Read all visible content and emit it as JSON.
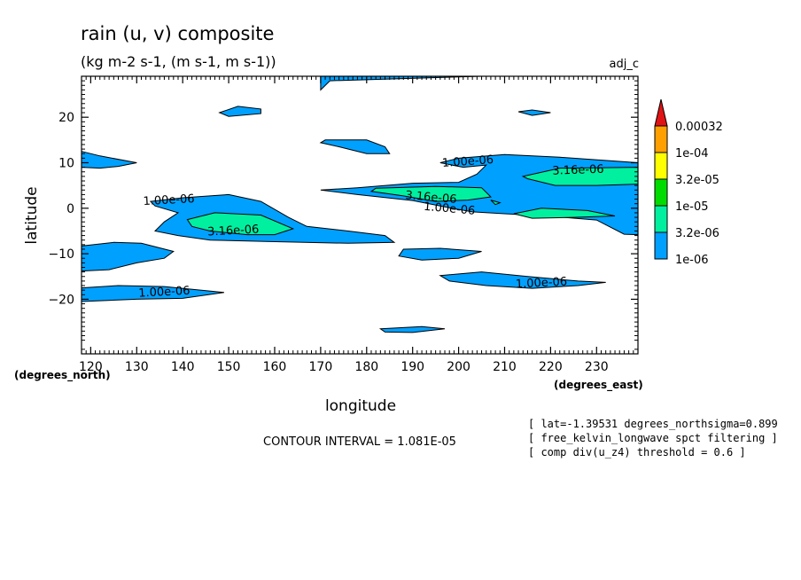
{
  "chart_data": {
    "type": "contour",
    "title": "rain (u, v) composite",
    "subtitle": "(kg m-2 s-1, (m s-1, m s-1))",
    "run_label": "adj_c",
    "xlabel": "longitude",
    "ylabel": "latitude",
    "x_units": "(degrees_east)",
    "y_units": "(degrees_north)",
    "xlim": [
      118,
      239
    ],
    "ylim": [
      -32,
      29
    ],
    "x_ticks": [
      120,
      130,
      140,
      150,
      160,
      170,
      180,
      190,
      200,
      210,
      220,
      230
    ],
    "y_ticks": [
      20,
      10,
      0,
      -10,
      -20
    ],
    "y_tick_labels": [
      "20",
      "10",
      "0",
      "−10",
      "−20"
    ],
    "contour_interval_text": "CONTOUR INTERVAL = 1.081E-05",
    "info_lines": [
      "[ lat=-1.39531 degrees_northsigma=0.899",
      "[ free_kelvin_longwave spct filtering ]",
      "[ comp div(u_z4) threshold = 0.6 ]"
    ],
    "levels": [
      {
        "label": "1e-06",
        "color": "#00a0ff"
      },
      {
        "label": "3.2e-06",
        "color": "#00f0a0"
      },
      {
        "label": "1e-05",
        "color": "#00dc00"
      },
      {
        "label": "3.2e-05",
        "color": "#ffff00"
      },
      {
        "label": "1e-04",
        "color": "#ffa000"
      },
      {
        "label": "0.00032",
        "color": "#e01414"
      }
    ],
    "contour_labels": [
      {
        "text": "1.00e-06",
        "x": 137,
        "y": 1.7,
        "angle": -3
      },
      {
        "text": "3.16e-06",
        "x": 151,
        "y": -5,
        "angle": -3
      },
      {
        "text": "1.00e-06",
        "x": 136,
        "y": -18.5,
        "angle": -3
      },
      {
        "text": "3.16e-06",
        "x": 194,
        "y": 2.3,
        "angle": 5
      },
      {
        "text": "1.00e-06",
        "x": 198,
        "y": -0.2,
        "angle": 5
      },
      {
        "text": "1.00e-06",
        "x": 202,
        "y": 10.2,
        "angle": -4
      },
      {
        "text": "3.16e-06",
        "x": 226,
        "y": 8.3,
        "angle": -2
      },
      {
        "text": "1.00e-06",
        "x": 218,
        "y": -16.5,
        "angle": -3
      }
    ],
    "regions": [
      {
        "level": 0,
        "points": [
          [
            170,
            26
          ],
          [
            172,
            28
          ],
          [
            205,
            29
          ],
          [
            170,
            29
          ]
        ]
      },
      {
        "level": 0,
        "points": [
          [
            148,
            21
          ],
          [
            152,
            22.4
          ],
          [
            157,
            21.8
          ],
          [
            157,
            20.8
          ],
          [
            150,
            20.2
          ]
        ]
      },
      {
        "level": 0,
        "points": [
          [
            171,
            15
          ],
          [
            180,
            15
          ],
          [
            184,
            13.5
          ],
          [
            185,
            12
          ],
          [
            180,
            12
          ],
          [
            174,
            13.5
          ],
          [
            170,
            14.4
          ]
        ]
      },
      {
        "level": 0,
        "points": [
          [
            213,
            21.2
          ],
          [
            216,
            21.6
          ],
          [
            220,
            21
          ],
          [
            216,
            20.4
          ]
        ]
      },
      {
        "level": 0,
        "points": [
          [
            118,
            12.5
          ],
          [
            122,
            11.5
          ],
          [
            130,
            10
          ],
          [
            126,
            9.2
          ],
          [
            122,
            8.8
          ],
          [
            118,
            9
          ]
        ]
      },
      {
        "level": 0,
        "points": [
          [
            133,
            1.5
          ],
          [
            140,
            2.3
          ],
          [
            150,
            3
          ],
          [
            157,
            1.5
          ],
          [
            163,
            -2
          ],
          [
            167,
            -4
          ],
          [
            176,
            -5
          ],
          [
            184,
            -6
          ],
          [
            186,
            -7.5
          ],
          [
            176,
            -7.7
          ],
          [
            158,
            -7.3
          ],
          [
            146,
            -7
          ],
          [
            139,
            -6
          ],
          [
            134,
            -5
          ],
          [
            136,
            -3
          ],
          [
            139,
            -1
          ],
          [
            134,
            0.5
          ]
        ]
      },
      {
        "level": 0,
        "points": [
          [
            118,
            -8.3
          ],
          [
            125,
            -7.5
          ],
          [
            131,
            -7.7
          ],
          [
            138,
            -9.5
          ],
          [
            136,
            -11
          ],
          [
            130,
            -12
          ],
          [
            124,
            -13.5
          ],
          [
            118,
            -13.8
          ]
        ]
      },
      {
        "level": 0,
        "points": [
          [
            188,
            -9
          ],
          [
            196,
            -8.8
          ],
          [
            205,
            -9.5
          ],
          [
            200,
            -11
          ],
          [
            192,
            -11.4
          ],
          [
            187,
            -10.5
          ]
        ]
      },
      {
        "level": 0,
        "points": [
          [
            118,
            -17.5
          ],
          [
            126,
            -17
          ],
          [
            136,
            -17.2
          ],
          [
            149,
            -18.5
          ],
          [
            140,
            -19.8
          ],
          [
            130,
            -20
          ],
          [
            118,
            -20.5
          ]
        ]
      },
      {
        "level": 0,
        "points": [
          [
            196,
            -14.8
          ],
          [
            205,
            -14
          ],
          [
            215,
            -15
          ],
          [
            226,
            -16
          ],
          [
            232,
            -16.3
          ],
          [
            226,
            -17
          ],
          [
            216,
            -17.6
          ],
          [
            206,
            -17
          ],
          [
            198,
            -16
          ]
        ]
      },
      {
        "level": 0,
        "points": [
          [
            183,
            -26.5
          ],
          [
            192,
            -26
          ],
          [
            197,
            -26.5
          ],
          [
            190,
            -27.3
          ],
          [
            184,
            -27.2
          ]
        ]
      },
      {
        "level": 0,
        "points": [
          [
            196,
            10
          ],
          [
            200,
            11
          ],
          [
            210,
            11.8
          ],
          [
            222,
            11.2
          ],
          [
            239,
            10
          ],
          [
            239,
            -5.8
          ],
          [
            236,
            -5.7
          ],
          [
            230,
            -2.6
          ],
          [
            219,
            -1.7
          ],
          [
            210,
            -1.2
          ],
          [
            203,
            -0.8
          ],
          [
            199,
            -0.1
          ],
          [
            190,
            1.7
          ],
          [
            178,
            3
          ],
          [
            170,
            4
          ],
          [
            178,
            4.5
          ],
          [
            190,
            5.5
          ],
          [
            200,
            5.7
          ],
          [
            204,
            7.5
          ],
          [
            206,
            9.5
          ],
          [
            201,
            9
          ]
        ]
      },
      {
        "level": 1,
        "points": [
          [
            141,
            -2.5
          ],
          [
            147,
            -1
          ],
          [
            157,
            -1.5
          ],
          [
            164,
            -4.5
          ],
          [
            160,
            -5.8
          ],
          [
            154,
            -5.8
          ],
          [
            146,
            -5
          ],
          [
            142,
            -4
          ]
        ]
      },
      {
        "level": 1,
        "points": [
          [
            182,
            4.4
          ],
          [
            195,
            4.8
          ],
          [
            205,
            4.5
          ],
          [
            207,
            2.5
          ],
          [
            202,
            1.8
          ],
          [
            195,
            1.5
          ],
          [
            188,
            2.7
          ],
          [
            181,
            3.7
          ]
        ]
      },
      {
        "level": 1,
        "points": [
          [
            207,
            1.8
          ],
          [
            209,
            1.2
          ],
          [
            208,
            0.8
          ]
        ]
      },
      {
        "level": 1,
        "points": [
          [
            214,
            7
          ],
          [
            222,
            8.8
          ],
          [
            239,
            9
          ],
          [
            239,
            5.3
          ],
          [
            230,
            5
          ],
          [
            221,
            5
          ],
          [
            215,
            6.5
          ]
        ]
      },
      {
        "level": 1,
        "points": [
          [
            212,
            -1.2
          ],
          [
            218,
            0
          ],
          [
            228,
            -0.5
          ],
          [
            234,
            -1.7
          ],
          [
            225,
            -2
          ],
          [
            216,
            -2.2
          ]
        ]
      }
    ]
  }
}
